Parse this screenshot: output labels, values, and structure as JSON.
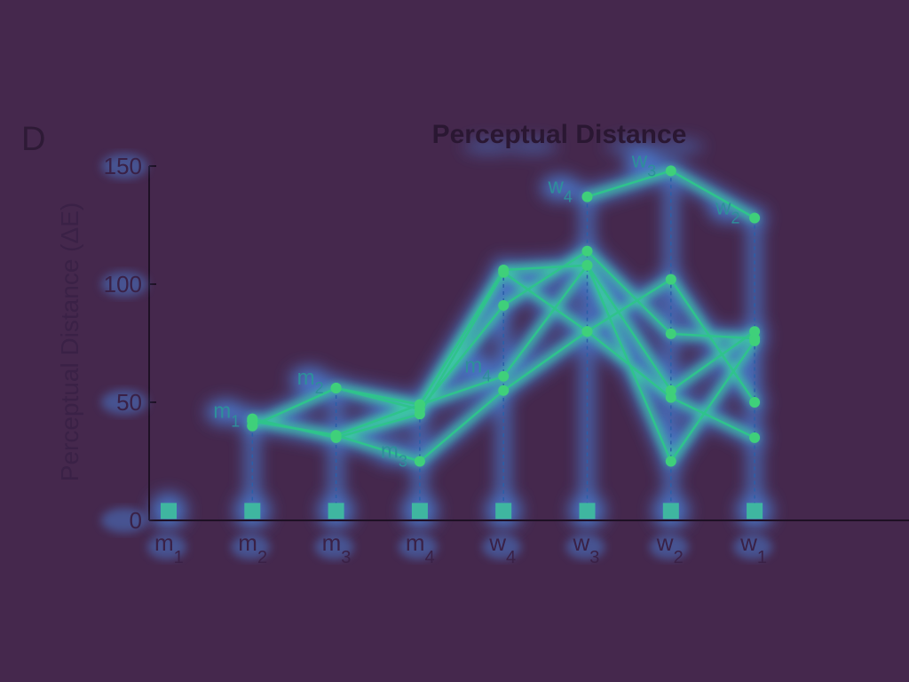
{
  "panel_label": "D",
  "chart_data": {
    "type": "line",
    "title": "Perceptual Distance",
    "xlabel": "",
    "ylabel": "Perceptual Distance (ΔE)",
    "ylim": [
      0,
      150
    ],
    "yticks": [
      0,
      50,
      100,
      150
    ],
    "categories": [
      {
        "base": "m",
        "sub": "1"
      },
      {
        "base": "m",
        "sub": "2"
      },
      {
        "base": "m",
        "sub": "3"
      },
      {
        "base": "m",
        "sub": "4"
      },
      {
        "base": "w",
        "sub": "4"
      },
      {
        "base": "w",
        "sub": "3"
      },
      {
        "base": "w",
        "sub": "2"
      },
      {
        "base": "w",
        "sub": "1"
      }
    ],
    "series": [
      {
        "values": [
          null,
          42,
          36,
          25,
          55,
          80,
          52,
          35
        ]
      },
      {
        "values": [
          null,
          40,
          56,
          47,
          91,
          114,
          79,
          77
        ]
      },
      {
        "values": [
          null,
          43,
          35,
          45,
          105,
          80,
          102,
          50
        ]
      },
      {
        "values": [
          null,
          42,
          36,
          49,
          106,
          108,
          55,
          80
        ]
      },
      {
        "values": [
          null,
          40,
          56,
          49,
          61,
          108,
          25,
          76
        ]
      },
      {
        "values": [
          null,
          null,
          null,
          null,
          null,
          137,
          148,
          128
        ]
      }
    ],
    "point_labels": [
      {
        "text": "m",
        "sub": "1",
        "x_index": 1,
        "y": 42
      },
      {
        "text": "m",
        "sub": "2",
        "x_index": 2,
        "y": 56
      },
      {
        "text": "m",
        "sub": "3",
        "x_index": 3,
        "y": 25
      },
      {
        "text": "m",
        "sub": "4",
        "x_index": 4,
        "y": 61
      },
      {
        "text": "w",
        "sub": "4",
        "x_index": 5,
        "y": 137
      },
      {
        "text": "w",
        "sub": "3",
        "x_index": 6,
        "y": 148
      },
      {
        "text": "w",
        "sub": "2",
        "x_index": 7,
        "y": 128
      }
    ],
    "baseline_markers": [
      4,
      4,
      4,
      4,
      4,
      4,
      4,
      4
    ],
    "colors": {
      "background": "#45284d",
      "glow": "#4a7fd6",
      "line": "#2fc38c",
      "point": "#3fd07a",
      "marker": "#3fb6a0",
      "axis": "#1e1024"
    }
  }
}
